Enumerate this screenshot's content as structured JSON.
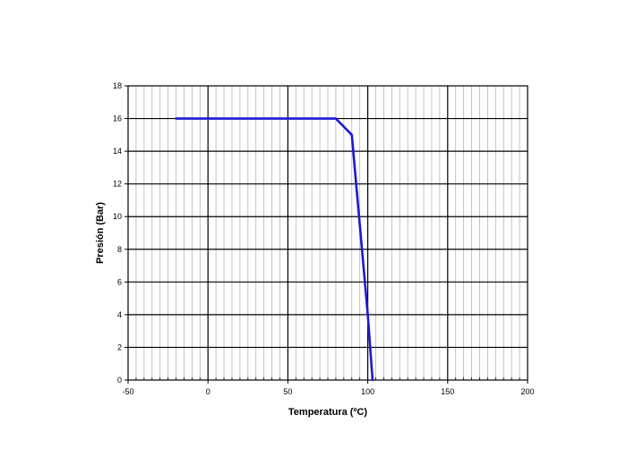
{
  "chart_data": {
    "type": "line",
    "title": "",
    "xlabel": "Temperatura (ºC)",
    "ylabel": "Presión (Bar)",
    "xlim": [
      -50,
      200
    ],
    "ylim": [
      0,
      18
    ],
    "x_ticks": [
      -50,
      0,
      50,
      100,
      150,
      200
    ],
    "y_ticks": [
      0,
      2,
      4,
      6,
      8,
      10,
      12,
      14,
      16,
      18
    ],
    "x_minor_step": 5,
    "grid": true,
    "legend": "none",
    "series": [
      {
        "color": "#1a1ad4",
        "points": [
          {
            "x": -20,
            "y": 16
          },
          {
            "x": 80,
            "y": 16
          },
          {
            "x": 90,
            "y": 15
          },
          {
            "x": 100,
            "y": 4
          },
          {
            "x": 103,
            "y": 0
          }
        ]
      }
    ]
  }
}
